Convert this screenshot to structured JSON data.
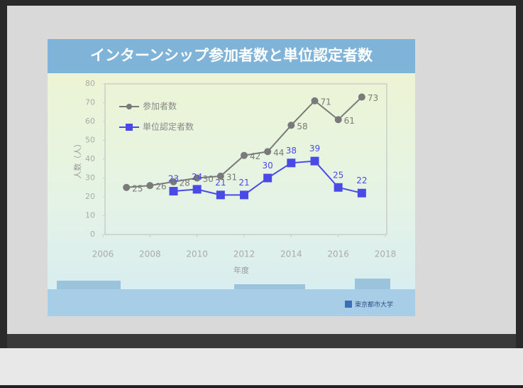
{
  "chart_data": {
    "type": "line",
    "title": "インターンシップ参加者数と単位認定者数",
    "x_label": "年度",
    "y_label": "人数（人）",
    "x": [
      2007,
      2008,
      2009,
      2010,
      2011,
      2012,
      2013,
      2014,
      2015,
      2016,
      2017
    ],
    "series": [
      {
        "name": "参加者数",
        "color": "#7a7a7a",
        "values": [
          25,
          26,
          28,
          30,
          31,
          42,
          44,
          58,
          71,
          61,
          73
        ]
      },
      {
        "name": "単位認定者数",
        "color": "#4a4ae6",
        "values": [
          null,
          null,
          23,
          24,
          21,
          21,
          30,
          38,
          39,
          25,
          22
        ]
      }
    ],
    "xlim": [
      2006,
      2018
    ],
    "xticks": [
      2006,
      2008,
      2010,
      2012,
      2014,
      2016,
      2018
    ],
    "ylim": [
      0,
      80
    ],
    "yticks": [
      0,
      10,
      20,
      30,
      40,
      50,
      60,
      70,
      80
    ],
    "legend": "upper left",
    "grid": false
  },
  "footer": {
    "logo": "東京都市大学"
  }
}
